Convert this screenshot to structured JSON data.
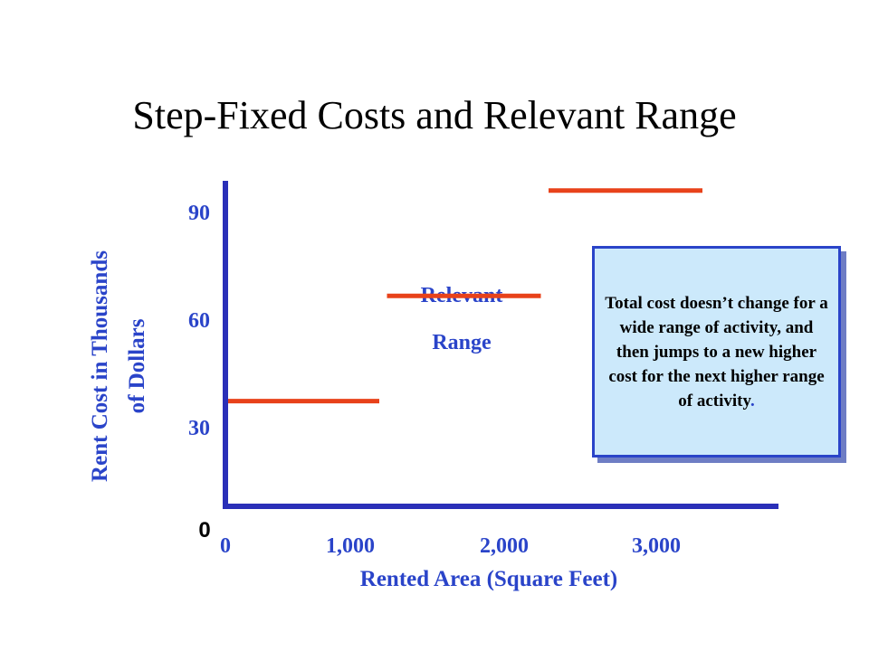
{
  "slide": {
    "title": "Step-Fixed Costs and Relevant Range",
    "origin_label": "0",
    "relevant_range_label": {
      "line1": "Relevant",
      "line2": "Range"
    },
    "callout": {
      "text": "Total cost doesn’t change for a wide range of activity, and then jumps to a new higher cost for the next higher range of activity",
      "period": "."
    }
  },
  "colors": {
    "axis": "#2a2fb8",
    "axis_labels": "#2a44c9",
    "steps": "#e8421a",
    "callout_fill": "#cce9fb",
    "callout_border": "#2a44c9",
    "callout_shadow": "#6e7dc4"
  },
  "chart_data": {
    "type": "line",
    "title": "Step-Fixed Costs and Relevant Range",
    "xlabel": "Rented Area (Square Feet)",
    "ylabel_lines": [
      "Rent Cost in Thousands",
      "of Dollars"
    ],
    "x_ticks": [
      "0",
      "1,000",
      "2,000",
      "3,000"
    ],
    "y_ticks": [
      "90",
      "60",
      "30"
    ],
    "xlim": [
      0,
      3600
    ],
    "ylim": [
      0,
      100
    ],
    "grid": false,
    "legend": "none",
    "steps": [
      {
        "x_start": 0,
        "x_end": 1000,
        "y": 30
      },
      {
        "x_start": 1050,
        "x_end": 2050,
        "y": 60
      },
      {
        "x_start": 2100,
        "x_end": 3100,
        "y": 90
      }
    ]
  }
}
